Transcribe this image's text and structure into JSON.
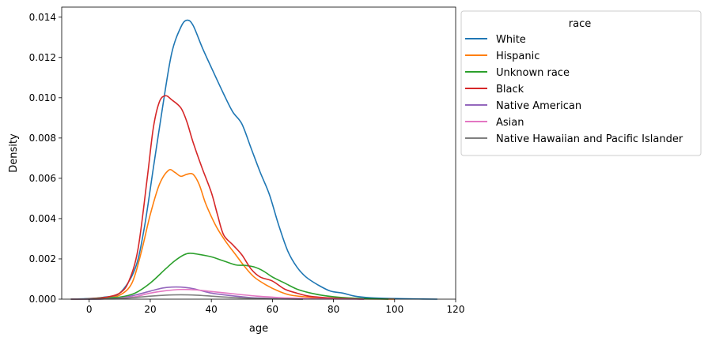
{
  "chart_data": {
    "type": "line",
    "title": "",
    "xlabel": "age",
    "ylabel": "Density",
    "xlim": [
      -9,
      120
    ],
    "ylim": [
      0,
      0.0145
    ],
    "x_ticks": [
      0,
      20,
      40,
      60,
      80,
      100,
      120
    ],
    "y_ticks": [
      0.0,
      0.002,
      0.004,
      0.006,
      0.008,
      0.01,
      0.012,
      0.014
    ],
    "y_tick_labels": [
      "0.000",
      "0.002",
      "0.004",
      "0.006",
      "0.008",
      "0.010",
      "0.012",
      "0.014"
    ],
    "grid": false,
    "legend": {
      "title": "race",
      "placement": "outside-right-top"
    },
    "series": [
      {
        "name": "White",
        "color": "#1f77b4",
        "points": [
          [
            -6,
            0
          ],
          [
            0,
            3e-05
          ],
          [
            5,
            0.0001
          ],
          [
            10,
            0.0003
          ],
          [
            15,
            0.0015
          ],
          [
            18,
            0.0035
          ],
          [
            21,
            0.0065
          ],
          [
            24,
            0.0095
          ],
          [
            27,
            0.0122
          ],
          [
            30,
            0.0135
          ],
          [
            32,
            0.01385
          ],
          [
            34,
            0.0136
          ],
          [
            37,
            0.0125
          ],
          [
            40,
            0.0115
          ],
          [
            44,
            0.0102
          ],
          [
            47,
            0.0093
          ],
          [
            50,
            0.0087
          ],
          [
            53,
            0.0075
          ],
          [
            56,
            0.0063
          ],
          [
            59,
            0.0052
          ],
          [
            62,
            0.0037
          ],
          [
            65,
            0.0024
          ],
          [
            68,
            0.0016
          ],
          [
            71,
            0.0011
          ],
          [
            75,
            0.0007
          ],
          [
            79,
            0.0004
          ],
          [
            83,
            0.0003
          ],
          [
            87,
            0.00015
          ],
          [
            92,
            7e-05
          ],
          [
            100,
            3e-05
          ],
          [
            108,
            1e-05
          ],
          [
            114,
            0
          ]
        ]
      },
      {
        "name": "Hispanic",
        "color": "#ff7f0e",
        "points": [
          [
            -6,
            0
          ],
          [
            0,
            1e-05
          ],
          [
            5,
            5e-05
          ],
          [
            10,
            0.0002
          ],
          [
            14,
            0.0008
          ],
          [
            17,
            0.0023
          ],
          [
            20,
            0.0042
          ],
          [
            23,
            0.0057
          ],
          [
            26,
            0.0064
          ],
          [
            28,
            0.0063
          ],
          [
            30,
            0.0061
          ],
          [
            32,
            0.0062
          ],
          [
            34,
            0.0062
          ],
          [
            36,
            0.0057
          ],
          [
            38,
            0.0048
          ],
          [
            40,
            0.0041
          ],
          [
            42,
            0.0035
          ],
          [
            45,
            0.0028
          ],
          [
            48,
            0.0022
          ],
          [
            51,
            0.0016
          ],
          [
            54,
            0.0011
          ],
          [
            58,
            0.0007
          ],
          [
            62,
            0.0004
          ],
          [
            66,
            0.0002
          ],
          [
            72,
            0.0001
          ],
          [
            80,
            4e-05
          ],
          [
            90,
            1e-05
          ],
          [
            100,
            0
          ]
        ]
      },
      {
        "name": "Unknown race",
        "color": "#2ca02c",
        "points": [
          [
            -6,
            0
          ],
          [
            0,
            2e-05
          ],
          [
            5,
            8e-05
          ],
          [
            10,
            0.0001
          ],
          [
            15,
            0.0003
          ],
          [
            20,
            0.0008
          ],
          [
            25,
            0.0015
          ],
          [
            28,
            0.0019
          ],
          [
            31,
            0.0022
          ],
          [
            33,
            0.00228
          ],
          [
            36,
            0.00222
          ],
          [
            40,
            0.0021
          ],
          [
            44,
            0.0019
          ],
          [
            48,
            0.0017
          ],
          [
            51,
            0.00168
          ],
          [
            54,
            0.0016
          ],
          [
            57,
            0.0014
          ],
          [
            60,
            0.0011
          ],
          [
            64,
            0.0008
          ],
          [
            68,
            0.0005
          ],
          [
            72,
            0.00032
          ],
          [
            76,
            0.0002
          ],
          [
            80,
            0.00012
          ],
          [
            85,
            6e-05
          ],
          [
            90,
            3e-05
          ],
          [
            98,
            0
          ]
        ]
      },
      {
        "name": "Black",
        "color": "#d62728",
        "points": [
          [
            -6,
            0
          ],
          [
            0,
            2e-05
          ],
          [
            5,
            8e-05
          ],
          [
            10,
            0.0003
          ],
          [
            13,
            0.0009
          ],
          [
            16,
            0.0025
          ],
          [
            19,
            0.006
          ],
          [
            21,
            0.0085
          ],
          [
            23,
            0.0098
          ],
          [
            25,
            0.0101
          ],
          [
            27,
            0.0099
          ],
          [
            30,
            0.0095
          ],
          [
            32,
            0.0088
          ],
          [
            34,
            0.0078
          ],
          [
            37,
            0.0065
          ],
          [
            40,
            0.0053
          ],
          [
            42,
            0.0042
          ],
          [
            44,
            0.0032
          ],
          [
            47,
            0.0027
          ],
          [
            50,
            0.0022
          ],
          [
            53,
            0.0015
          ],
          [
            56,
            0.0011
          ],
          [
            60,
            0.0009
          ],
          [
            64,
            0.0005
          ],
          [
            68,
            0.0003
          ],
          [
            72,
            0.00015
          ],
          [
            80,
            5e-05
          ],
          [
            90,
            0
          ]
        ]
      },
      {
        "name": "Native American",
        "color": "#9467bd",
        "points": [
          [
            -6,
            0
          ],
          [
            5,
            1e-05
          ],
          [
            10,
            5e-05
          ],
          [
            15,
            0.0002
          ],
          [
            20,
            0.0004
          ],
          [
            24,
            0.00055
          ],
          [
            27,
            0.0006
          ],
          [
            30,
            0.0006
          ],
          [
            33,
            0.00055
          ],
          [
            36,
            0.00045
          ],
          [
            40,
            0.0003
          ],
          [
            45,
            0.0002
          ],
          [
            50,
            0.00012
          ],
          [
            55,
            6e-05
          ],
          [
            62,
            2e-05
          ],
          [
            70,
            0
          ]
        ]
      },
      {
        "name": "Asian",
        "color": "#e377c2",
        "points": [
          [
            -6,
            0
          ],
          [
            5,
            1e-05
          ],
          [
            10,
            4e-05
          ],
          [
            15,
            0.00012
          ],
          [
            20,
            0.0003
          ],
          [
            25,
            0.00042
          ],
          [
            30,
            0.00048
          ],
          [
            35,
            0.00046
          ],
          [
            40,
            0.00038
          ],
          [
            45,
            0.0003
          ],
          [
            50,
            0.00022
          ],
          [
            55,
            0.00015
          ],
          [
            60,
            0.0001
          ],
          [
            65,
            6e-05
          ],
          [
            72,
            3e-05
          ],
          [
            80,
            1e-05
          ],
          [
            90,
            0
          ]
        ]
      },
      {
        "name": "Native Hawaiian and Pacific Islander",
        "color": "#7f7f7f",
        "points": [
          [
            -6,
            0
          ],
          [
            5,
            1e-05
          ],
          [
            10,
            3e-05
          ],
          [
            15,
            8e-05
          ],
          [
            20,
            0.00015
          ],
          [
            25,
            0.0002
          ],
          [
            30,
            0.00022
          ],
          [
            35,
            0.0002
          ],
          [
            40,
            0.00015
          ],
          [
            45,
            0.0001
          ],
          [
            50,
            6e-05
          ],
          [
            56,
            3e-05
          ],
          [
            62,
            1e-05
          ],
          [
            70,
            0
          ]
        ]
      }
    ]
  }
}
